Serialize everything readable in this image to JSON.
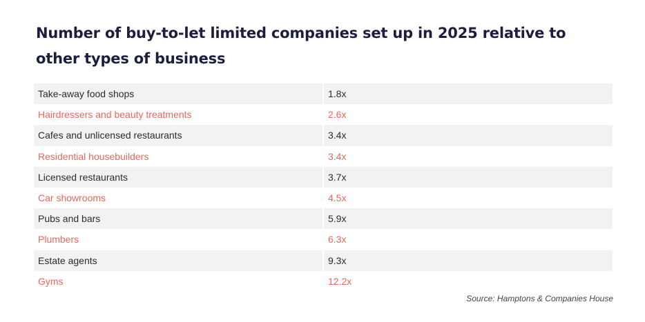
{
  "chart_data": {
    "type": "table",
    "title": "Number of buy-to-let limited companies set up in 2025 relative to other types of business",
    "rows": [
      {
        "label": "Take-away food shops",
        "value": "1.8x"
      },
      {
        "label": "Hairdressers and beauty treatments",
        "value": "2.6x"
      },
      {
        "label": "Cafes and unlicensed restaurants",
        "value": "3.4x"
      },
      {
        "label": "Residential housebuilders",
        "value": "3.4x"
      },
      {
        "label": "Licensed restaurants",
        "value": "3.7x"
      },
      {
        "label": "Car showrooms",
        "value": "4.5x"
      },
      {
        "label": "Pubs and bars",
        "value": "5.9x"
      },
      {
        "label": "Plumbers",
        "value": "6.3x"
      },
      {
        "label": "Estate agents",
        "value": "9.3x"
      },
      {
        "label": "Gyms",
        "value": "12.2x"
      }
    ],
    "source": "Source: Hamptons & Companies House",
    "colors": {
      "title": "#1b1e3d",
      "text": "#2b2b2b",
      "accent": "#e8675d",
      "row_shade": "#f2f2f2"
    }
  }
}
